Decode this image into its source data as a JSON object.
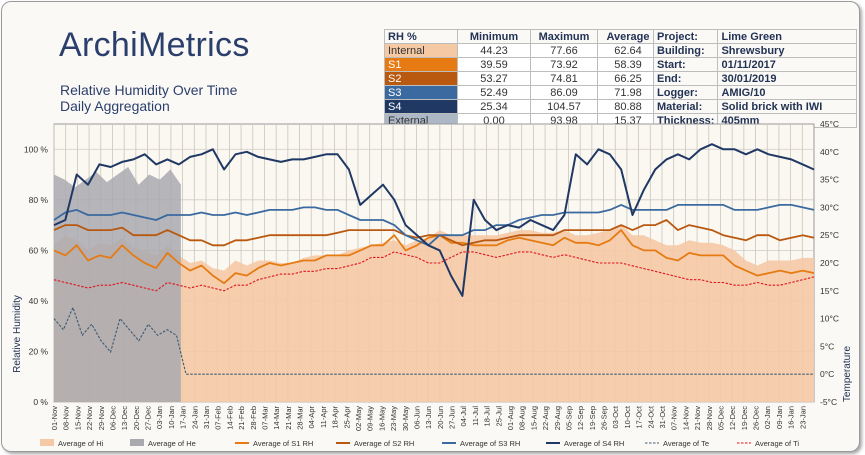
{
  "brand": "ArchiMetrics",
  "subtitle": [
    "Relative Humidity Over Time",
    "Daily Aggregation"
  ],
  "stats_table": {
    "headers": [
      "RH %",
      "Minimum",
      "Maximum",
      "Average"
    ],
    "rows": [
      {
        "label": "Internal",
        "min": "44.23",
        "max": "77.66",
        "avg": "62.64",
        "color": "#f4c9a4",
        "text": "#333333"
      },
      {
        "label": "S1",
        "min": "39.59",
        "max": "73.92",
        "avg": "58.39",
        "color": "#e57b12",
        "text": "#ffffff"
      },
      {
        "label": "S2",
        "min": "53.27",
        "max": "74.81",
        "avg": "66.25",
        "color": "#b9580f",
        "text": "#ffffff"
      },
      {
        "label": "S3",
        "min": "52.49",
        "max": "86.09",
        "avg": "71.98",
        "color": "#3b6aa0",
        "text": "#ffffff"
      },
      {
        "label": "S4",
        "min": "25.34",
        "max": "104.57",
        "avg": "80.88",
        "color": "#1f3864",
        "text": "#ffffff"
      },
      {
        "label": "External",
        "min": "0.00",
        "max": "93.98",
        "avg": "15.37",
        "color": "#adb8c7",
        "text": "#333333"
      }
    ]
  },
  "meta": [
    {
      "key": "Project:",
      "value": "Lime Green"
    },
    {
      "key": "Building:",
      "value": "Shrewsbury"
    },
    {
      "key": "Start:",
      "value": "01/11/2017"
    },
    {
      "key": "End:",
      "value": "30/01/2019"
    },
    {
      "key": "Logger:",
      "value": "AMIG/10"
    },
    {
      "key": "Material:",
      "value": "Solid brick with IWI"
    },
    {
      "key": "Thickness:",
      "value": "405mm"
    }
  ],
  "chart_data": {
    "type": "line",
    "ylabel_left": "Relative Humidity",
    "ylabel_right": "Temperature",
    "ylim_left": [
      0,
      110
    ],
    "ylim_right": [
      -5,
      45
    ],
    "yticks_left": [
      "0 %",
      "20 %",
      "40 %",
      "60 %",
      "80 %",
      "100 %"
    ],
    "yticks_right": [
      "-5°C",
      "0°C",
      "5°C",
      "10°C",
      "15°C",
      "20°C",
      "25°C",
      "30°C",
      "35°C",
      "40°C",
      "45°C"
    ],
    "x_start": "2017-11-01",
    "x_end": "2019-01-30",
    "xticks": [
      "01-Nov",
      "08-Nov",
      "15-Nov",
      "22-Nov",
      "29-Nov",
      "06-Dec",
      "13-Dec",
      "20-Dec",
      "27-Dec",
      "03-Jan",
      "10-Jan",
      "17-Jan",
      "24-Jan",
      "31-Jan",
      "07-Feb",
      "14-Feb",
      "21-Feb",
      "28-Feb",
      "07-Mar",
      "14-Mar",
      "21-Mar",
      "28-Mar",
      "04-Apr",
      "11-Apr",
      "18-Apr",
      "25-Apr",
      "02-May",
      "09-May",
      "16-May",
      "23-May",
      "30-May",
      "06-Jun",
      "13-Jun",
      "20-Jun",
      "27-Jun",
      "04-Jul",
      "11-Jul",
      "18-Jul",
      "25-Jul",
      "01-Aug",
      "08-Aug",
      "15-Aug",
      "22-Aug",
      "29-Aug",
      "05-Sep",
      "12-Sep",
      "19-Sep",
      "26-Sep",
      "03-Oct",
      "10-Oct",
      "17-Oct",
      "24-Oct",
      "31-Oct",
      "07-Nov",
      "14-Nov",
      "21-Nov",
      "28-Nov",
      "05-Dec",
      "12-Dec",
      "19-Dec",
      "26-Dec",
      "02-Jan",
      "09-Jan",
      "16-Jan",
      "23-Jan"
    ],
    "grid": true,
    "legend_position": "bottom",
    "series": [
      {
        "name": "Average of Hi",
        "kind": "area",
        "axis": "left",
        "color": "#f5c9a6",
        "values": [
          62,
          66,
          64,
          60,
          63,
          62,
          65,
          61,
          60,
          58,
          62,
          58,
          55,
          56,
          53,
          52,
          56,
          54,
          56,
          56,
          55,
          55,
          57,
          58,
          58,
          58,
          60,
          61,
          62,
          63,
          64,
          62,
          64,
          65,
          68,
          66,
          66,
          66,
          66,
          66,
          67,
          68,
          68,
          67,
          67,
          68,
          66,
          66,
          67,
          68,
          70,
          66,
          66,
          64,
          62,
          62,
          64,
          63,
          63,
          62,
          60,
          56,
          54,
          56,
          56,
          56,
          57,
          57
        ]
      },
      {
        "name": "Average of He",
        "kind": "area",
        "axis": "left",
        "color": "#a9a9b0",
        "values": [
          90,
          88,
          85,
          88,
          91,
          87,
          90,
          93,
          86,
          90,
          88,
          92,
          86
        ]
      },
      {
        "name": "Average of  S1 RH",
        "kind": "line",
        "axis": "left",
        "color": "#e57b12",
        "values": [
          60,
          58,
          62,
          56,
          58,
          57,
          62,
          58,
          55,
          53,
          59,
          55,
          52,
          54,
          50,
          47,
          51,
          50,
          53,
          55,
          54,
          55,
          56,
          56,
          58,
          58,
          58,
          60,
          62,
          62,
          66,
          60,
          62,
          65,
          66,
          63,
          63,
          62,
          62,
          62,
          64,
          65,
          64,
          63,
          62,
          65,
          63,
          63,
          62,
          64,
          68,
          62,
          60,
          60,
          57,
          56,
          59,
          58,
          58,
          58,
          54,
          52,
          50,
          51,
          52,
          51,
          52,
          51
        ]
      },
      {
        "name": "Average of  S2 RH",
        "kind": "line",
        "axis": "left",
        "color": "#b9580f",
        "values": [
          68,
          70,
          70,
          68,
          68,
          68,
          69,
          66,
          66,
          66,
          68,
          66,
          64,
          64,
          62,
          62,
          64,
          64,
          65,
          66,
          66,
          66,
          66,
          66,
          66,
          67,
          68,
          68,
          68,
          68,
          68,
          66,
          65,
          66,
          66,
          64,
          62,
          63,
          64,
          64,
          65,
          66,
          66,
          66,
          66,
          68,
          68,
          68,
          68,
          68,
          70,
          68,
          70,
          70,
          72,
          68,
          70,
          69,
          68,
          66,
          65,
          64,
          66,
          66,
          64,
          65,
          66,
          65
        ]
      },
      {
        "name": "Average of  S3 RH",
        "kind": "line",
        "axis": "left",
        "color": "#3b6aa0",
        "values": [
          72,
          75,
          76,
          74,
          74,
          74,
          75,
          74,
          73,
          72,
          74,
          74,
          74,
          75,
          74,
          74,
          75,
          74,
          75,
          76,
          76,
          76,
          77,
          77,
          76,
          76,
          74,
          72,
          72,
          72,
          70,
          66,
          64,
          62,
          66,
          66,
          66,
          68,
          68,
          70,
          70,
          72,
          73,
          74,
          74,
          75,
          75,
          75,
          75,
          76,
          78,
          76,
          76,
          76,
          76,
          78,
          78,
          78,
          78,
          78,
          76,
          76,
          76,
          77,
          78,
          78,
          77,
          76
        ]
      },
      {
        "name": "Average of  S4 RH",
        "kind": "line",
        "axis": "left",
        "color": "#1f3864",
        "values": [
          70,
          72,
          90,
          86,
          94,
          93,
          95,
          96,
          98,
          94,
          96,
          94,
          97,
          98,
          100,
          92,
          98,
          99,
          97,
          96,
          95,
          96,
          96,
          97,
          98,
          98,
          92,
          78,
          82,
          86,
          80,
          70,
          66,
          62,
          60,
          50,
          42,
          80,
          72,
          68,
          70,
          69,
          72,
          70,
          68,
          74,
          98,
          94,
          100,
          98,
          92,
          74,
          84,
          92,
          96,
          98,
          96,
          100,
          102,
          100,
          100,
          98,
          100,
          98,
          97,
          96,
          94,
          92
        ]
      },
      {
        "name": "Average of  Te",
        "kind": "dashed",
        "axis": "right",
        "color": "#3c5a6e",
        "values": [
          10,
          8,
          12,
          7,
          9,
          6,
          4,
          10,
          8,
          6,
          9,
          7,
          8,
          7,
          0
        ]
      },
      {
        "name": "Average of  Ti",
        "kind": "dashed",
        "axis": "right",
        "color": "#e0141e",
        "values": [
          17,
          16.5,
          16,
          15.5,
          16,
          16,
          16.5,
          16,
          15.5,
          15,
          16.5,
          16,
          15.5,
          16,
          15.5,
          15,
          16,
          16,
          17,
          17.5,
          18,
          18,
          18.5,
          18.5,
          19,
          19,
          19.5,
          20,
          21,
          21,
          22,
          21.5,
          21,
          20,
          20,
          21,
          22,
          22,
          21.5,
          21,
          21.5,
          22,
          22,
          21.5,
          21,
          21.5,
          21,
          20.5,
          20,
          20,
          20,
          19.5,
          19,
          18.5,
          18,
          17.5,
          17,
          17,
          16.5,
          16.5,
          16,
          16,
          16.5,
          16,
          16,
          16.5,
          17,
          17.5
        ]
      }
    ]
  }
}
